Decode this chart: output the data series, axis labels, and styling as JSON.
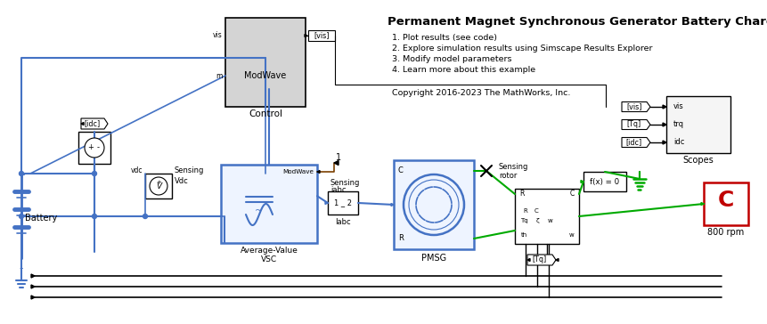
{
  "title": "Permanent Magnet Synchronous Generator Battery Charging",
  "bg_color": "#ffffff",
  "bullet_items": [
    "1. Plot results (see code)",
    "2. Explore simulation results using Simscape Results Explorer",
    "3. Modify model parameters",
    "4. Learn more about this example"
  ],
  "copyright": "Copyright 2016-2023 The MathWorks, Inc.",
  "blue": "#4472C4",
  "light_blue": "#AEC6E8",
  "green": "#00AA00",
  "dark_green": "#006600",
  "red_c": "#C00000",
  "brown_red": "#7B3F00",
  "black": "#000000",
  "gray_block": "#D4D4D4",
  "white": "#ffffff",
  "scope_bg": "#F0F0F0"
}
